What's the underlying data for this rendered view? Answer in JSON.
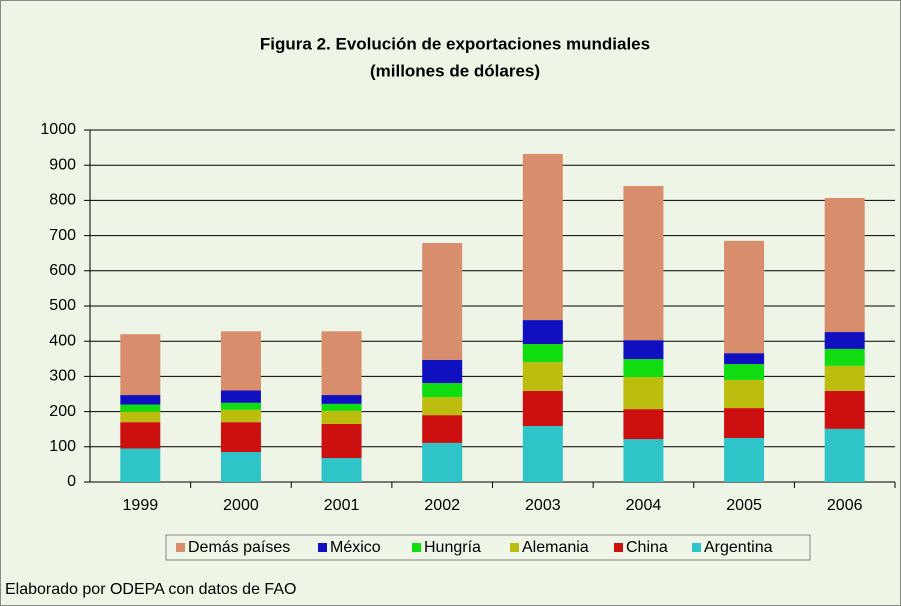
{
  "chart_data": {
    "type": "stacked_bar",
    "title": "Figura 2. Evolución de exportaciones mundiales",
    "subtitle": "(millones de dólares)",
    "source": "Elaborado por ODEPA con datos de FAO",
    "categories": [
      "1999",
      "2000",
      "2001",
      "2002",
      "2003",
      "2004",
      "2005",
      "2006"
    ],
    "series": [
      {
        "name": "Argentina",
        "color": "#2EC4C8",
        "values": [
          95,
          85,
          68,
          111,
          159,
          122,
          125,
          151
        ]
      },
      {
        "name": "China",
        "color": "#CC1010",
        "values": [
          75,
          85,
          97,
          79,
          100,
          85,
          85,
          108
        ]
      },
      {
        "name": "Alemania",
        "color": "#BDBD10",
        "values": [
          30,
          35,
          37,
          51,
          82,
          91,
          80,
          71
        ]
      },
      {
        "name": "Hungría",
        "color": "#10DD10",
        "values": [
          20,
          20,
          20,
          40,
          51,
          51,
          45,
          48
        ]
      },
      {
        "name": "México",
        "color": "#1010C0",
        "values": [
          27,
          35,
          25,
          66,
          68,
          54,
          31,
          48
        ]
      },
      {
        "name": "Demás países",
        "color": "#D88E6C",
        "values": [
          173,
          168,
          181,
          332,
          472,
          438,
          319,
          381
        ]
      }
    ],
    "ylim": [
      0,
      1000
    ],
    "yticks": [
      0,
      100,
      200,
      300,
      400,
      500,
      600,
      700,
      800,
      900,
      1000
    ],
    "grid": true,
    "legend": "bottom"
  }
}
